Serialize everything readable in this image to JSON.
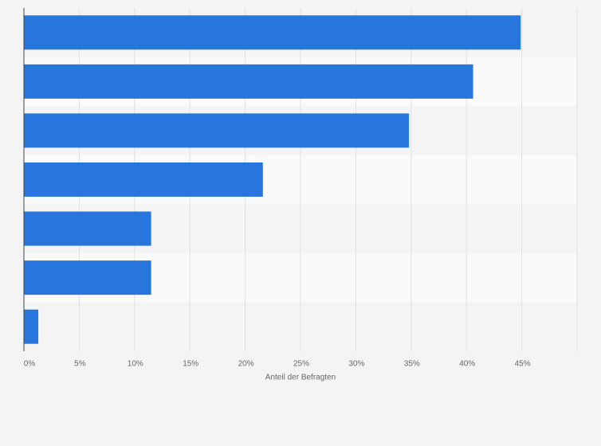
{
  "chart_data": {
    "type": "bar",
    "orientation": "horizontal",
    "categories": [
      null,
      null,
      null,
      null,
      null,
      null,
      null
    ],
    "values": [
      44.9,
      40.6,
      34.8,
      21.6,
      11.5,
      11.5,
      1.3
    ],
    "color": "#2876dd",
    "xlabel": "Anteil der Befragten",
    "xlim": [
      0,
      50
    ],
    "xticks": [
      {
        "value": 0,
        "label": "0%"
      },
      {
        "value": 5,
        "label": "5%"
      },
      {
        "value": 10,
        "label": "10%"
      },
      {
        "value": 15,
        "label": "15%"
      },
      {
        "value": 20,
        "label": "20%"
      },
      {
        "value": 25,
        "label": "25%"
      },
      {
        "value": 30,
        "label": "30%"
      },
      {
        "value": 35,
        "label": "35%"
      },
      {
        "value": 40,
        "label": "40%"
      },
      {
        "value": 45,
        "label": "45%"
      }
    ],
    "grid": true
  }
}
